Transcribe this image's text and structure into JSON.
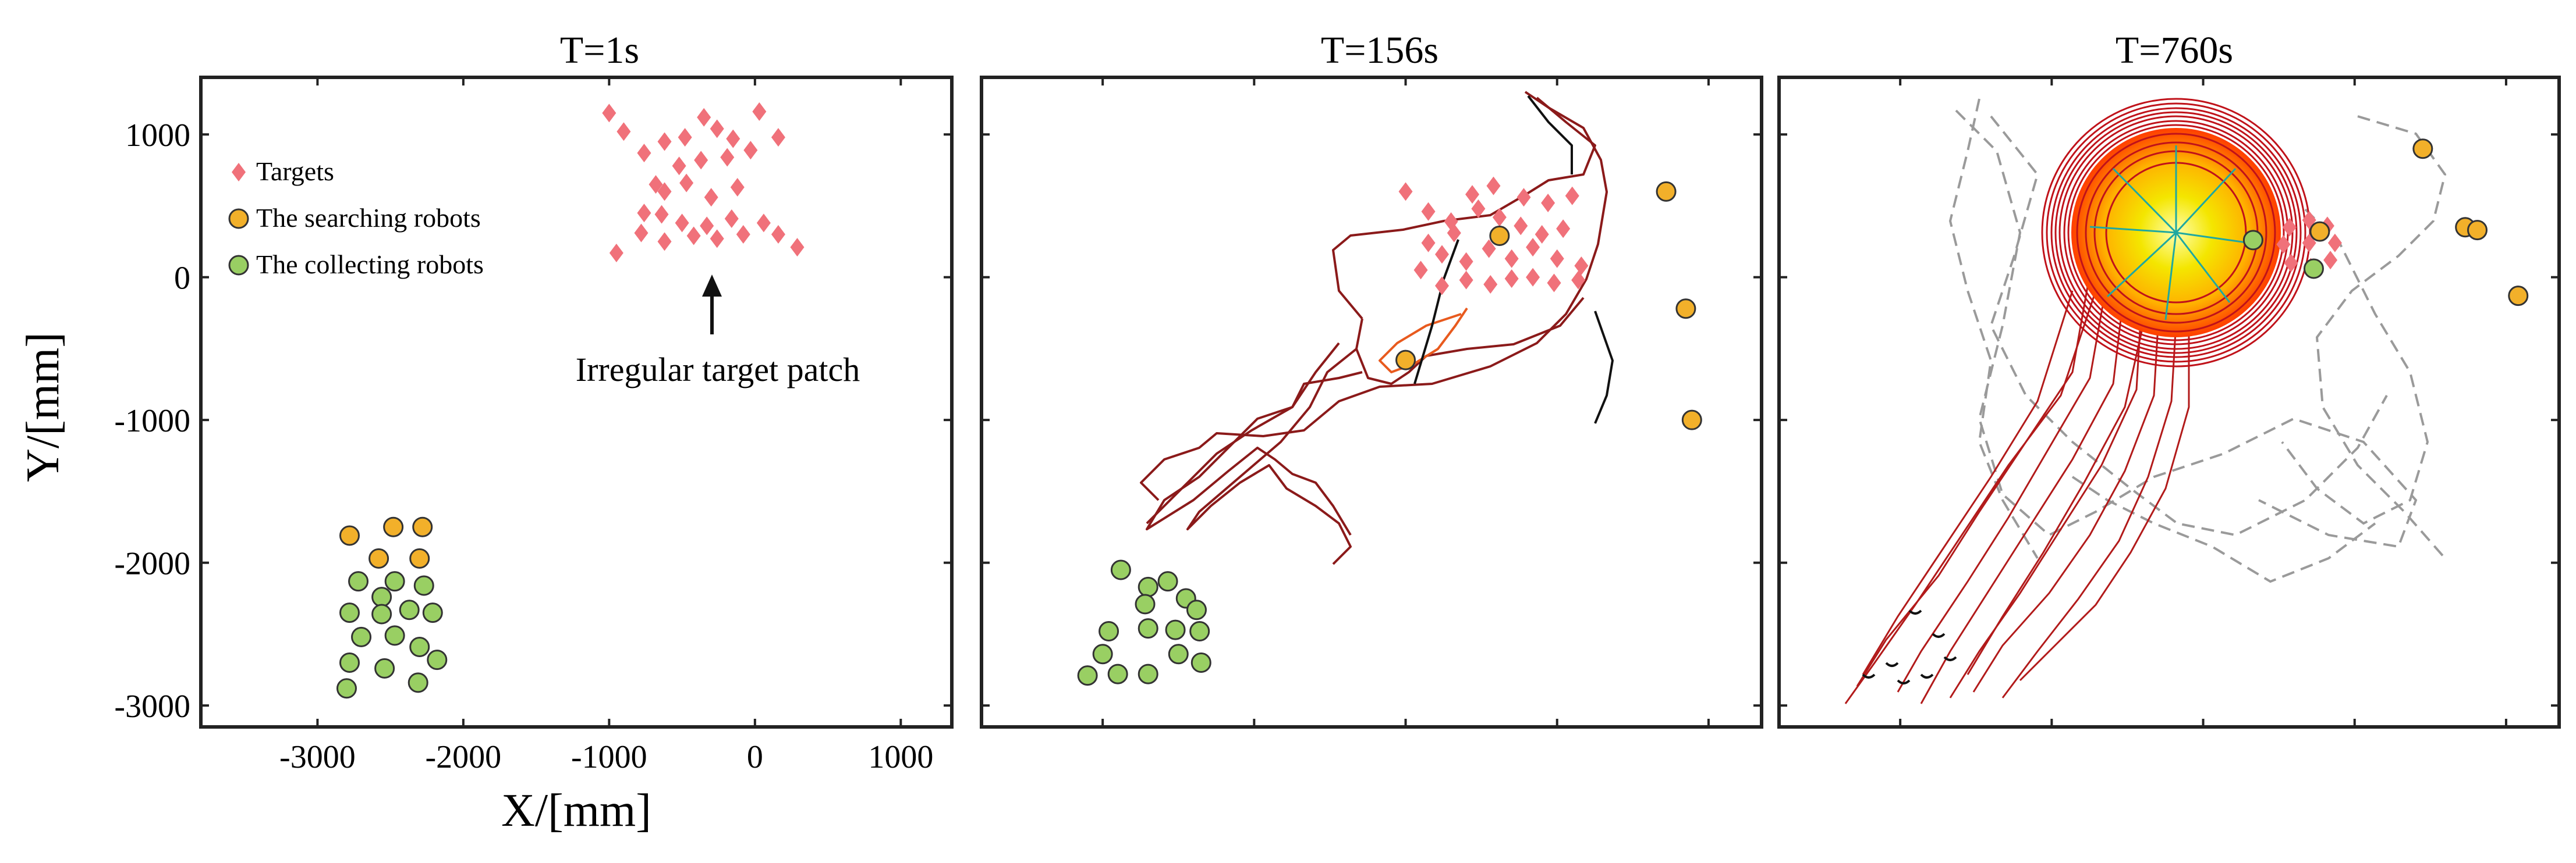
{
  "figure": {
    "ylabel": "Y/[mm]",
    "xlabel": "X/[mm]"
  },
  "colors": {
    "target": "#f0717a",
    "searching": "#f2b02a",
    "collecting": "#99cf63",
    "path_red": "#8b1a1a",
    "path_gray": "#9a9a9a",
    "frame": "#222222"
  },
  "chart_data": [
    {
      "type": "scatter",
      "title": "T=1s",
      "xlim": [
        -3800,
        1350
      ],
      "ylim": [
        -3150,
        1400
      ],
      "xticks": [
        -3000,
        -2000,
        -1000,
        0,
        1000
      ],
      "yticks": [
        1000,
        0,
        -1000,
        -2000,
        -3000
      ],
      "legend": {
        "placement": "top-left",
        "entries": [
          {
            "label": "Targets",
            "marker": "diamond",
            "color": "target"
          },
          {
            "label": "The searching robots",
            "marker": "circle",
            "color": "searching"
          },
          {
            "label": "The collecting robots",
            "marker": "circle",
            "color": "collecting"
          }
        ]
      },
      "annotation": {
        "text": "Irregular target patch",
        "arrow_to": [
          -300,
          70
        ]
      },
      "series": [
        {
          "name": "Targets",
          "marker": "diamond",
          "color": "target",
          "points": [
            [
              -1000,
              1150
            ],
            [
              -900,
              1020
            ],
            [
              -760,
              870
            ],
            [
              -620,
              950
            ],
            [
              -480,
              980
            ],
            [
              -350,
              1120
            ],
            [
              -260,
              1040
            ],
            [
              -150,
              970
            ],
            [
              30,
              1160
            ],
            [
              160,
              980
            ],
            [
              -680,
              650
            ],
            [
              -520,
              780
            ],
            [
              -370,
              820
            ],
            [
              -190,
              840
            ],
            [
              -30,
              890
            ],
            [
              -760,
              450
            ],
            [
              -620,
              600
            ],
            [
              -470,
              660
            ],
            [
              -300,
              560
            ],
            [
              -120,
              630
            ],
            [
              -780,
              310
            ],
            [
              -640,
              440
            ],
            [
              -500,
              380
            ],
            [
              -330,
              360
            ],
            [
              -160,
              410
            ],
            [
              60,
              380
            ],
            [
              -950,
              170
            ],
            [
              -620,
              250
            ],
            [
              -420,
              290
            ],
            [
              -260,
              270
            ],
            [
              -80,
              300
            ],
            [
              160,
              300
            ],
            [
              290,
              210
            ]
          ]
        },
        {
          "name": "The searching robots",
          "marker": "circle",
          "color": "searching",
          "points": [
            [
              -2780,
              -1810
            ],
            [
              -2480,
              -1750
            ],
            [
              -2280,
              -1750
            ],
            [
              -2580,
              -1970
            ],
            [
              -2300,
              -1970
            ]
          ]
        },
        {
          "name": "The collecting robots",
          "marker": "circle",
          "color": "collecting",
          "points": [
            [
              -2720,
              -2130
            ],
            [
              -2470,
              -2130
            ],
            [
              -2270,
              -2160
            ],
            [
              -2560,
              -2240
            ],
            [
              -2780,
              -2350
            ],
            [
              -2560,
              -2360
            ],
            [
              -2370,
              -2330
            ],
            [
              -2210,
              -2350
            ],
            [
              -2700,
              -2520
            ],
            [
              -2470,
              -2510
            ],
            [
              -2300,
              -2590
            ],
            [
              -2780,
              -2700
            ],
            [
              -2540,
              -2740
            ],
            [
              -2180,
              -2680
            ],
            [
              -2800,
              -2880
            ],
            [
              -2310,
              -2840
            ]
          ]
        }
      ]
    },
    {
      "type": "line",
      "title": "T=156s",
      "xlim": [
        -3800,
        1350
      ],
      "ylim": [
        -3150,
        1400
      ],
      "description_only_ticks": true,
      "series": [
        {
          "name": "Targets",
          "marker": "diamond",
          "color": "target",
          "points": [
            [
              -1000,
              600
            ],
            [
              -850,
              460
            ],
            [
              -700,
              390
            ],
            [
              -560,
              580
            ],
            [
              -420,
              640
            ],
            [
              -220,
              560
            ],
            [
              -60,
              520
            ],
            [
              100,
              570
            ],
            [
              -850,
              240
            ],
            [
              -680,
              310
            ],
            [
              -520,
              480
            ],
            [
              -380,
              420
            ],
            [
              -240,
              360
            ],
            [
              -100,
              300
            ],
            [
              40,
              340
            ],
            [
              -900,
              50
            ],
            [
              -760,
              160
            ],
            [
              -600,
              110
            ],
            [
              -450,
              200
            ],
            [
              -300,
              130
            ],
            [
              -160,
              210
            ],
            [
              0,
              130
            ],
            [
              160,
              80
            ],
            [
              -760,
              -60
            ],
            [
              -600,
              -20
            ],
            [
              -440,
              -50
            ],
            [
              -300,
              -10
            ],
            [
              -160,
              0
            ],
            [
              -20,
              -40
            ],
            [
              140,
              -20
            ]
          ]
        },
        {
          "name": "The searching robots",
          "marker": "circle",
          "color": "searching",
          "points": [
            [
              -1000,
              -580
            ],
            [
              -380,
              290
            ],
            [
              720,
              600
            ],
            [
              850,
              -220
            ],
            [
              890,
              -1000
            ]
          ]
        },
        {
          "name": "The collecting robots",
          "marker": "circle",
          "color": "collecting",
          "points": [
            [
              -2880,
              -2050
            ],
            [
              -2700,
              -2170
            ],
            [
              -2570,
              -2130
            ],
            [
              -2720,
              -2290
            ],
            [
              -2450,
              -2250
            ],
            [
              -2960,
              -2480
            ],
            [
              -2700,
              -2460
            ],
            [
              -2520,
              -2470
            ],
            [
              -2380,
              -2330
            ],
            [
              -2360,
              -2480
            ],
            [
              -3000,
              -2640
            ],
            [
              -2500,
              -2640
            ],
            [
              -3100,
              -2790
            ],
            [
              -2900,
              -2780
            ],
            [
              -2700,
              -2780
            ],
            [
              -2350,
              -2700
            ]
          ]
        }
      ]
    },
    {
      "type": "line",
      "title": "T=760s",
      "xlim": [
        -3800,
        1350
      ],
      "ylim": [
        -3150,
        1400
      ],
      "description_only_ticks": true,
      "series": [
        {
          "name": "Targets",
          "marker": "diamond",
          "color": "target",
          "points": [
            [
              -430,
              350
            ],
            [
              -300,
              400
            ],
            [
              -180,
              360
            ],
            [
              -130,
              240
            ],
            [
              -160,
              120
            ],
            [
              -290,
              70
            ],
            [
              -420,
              100
            ],
            [
              -470,
              230
            ],
            [
              -300,
              240
            ]
          ]
        },
        {
          "name": "The searching robots",
          "marker": "circle",
          "color": "searching",
          "points": [
            [
              -230,
              320
            ],
            [
              450,
              900
            ],
            [
              730,
              350
            ],
            [
              810,
              330
            ],
            [
              1080,
              -130
            ]
          ]
        },
        {
          "name": "The collecting robots",
          "marker": "circle",
          "color": "collecting",
          "points": [
            [
              -670,
              260
            ],
            [
              -270,
              60
            ]
          ]
        }
      ]
    }
  ]
}
